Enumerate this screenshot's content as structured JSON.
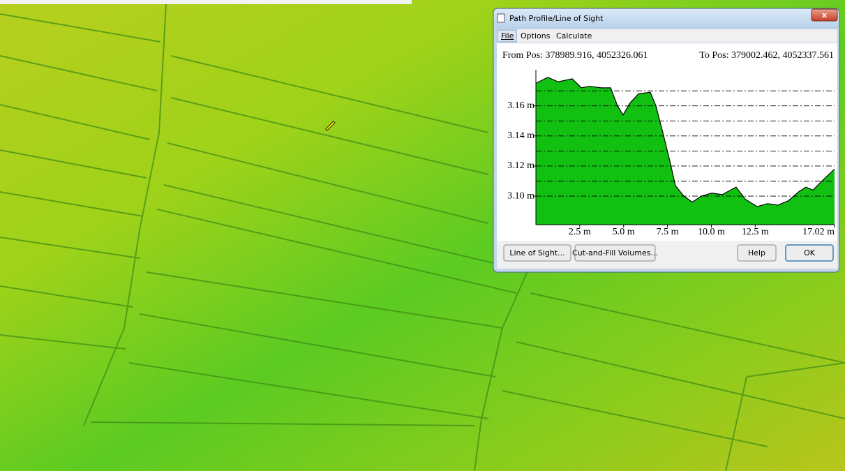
{
  "window": {
    "title": "Path Profile/Line of Sight",
    "menu": [
      "File",
      "Options",
      "Calculate"
    ],
    "from_pos": "From Pos: 378989.916, 4052326.061",
    "to_pos": "To Pos: 379002.462, 4052337.561",
    "buttons": [
      "Line of Sight...",
      "Cut-and-Fill Volumes...",
      "Help",
      "OK"
    ]
  },
  "chart_data": {
    "type": "area",
    "color": "#12c012",
    "grid": true,
    "x": [
      0,
      0.68,
      1.27,
      2.07,
      2.59,
      3.06,
      3.74,
      4.26,
      4.65,
      4.97,
      5.37,
      5.85,
      6.52,
      6.84,
      7.24,
      7.64,
      7.95,
      8.43,
      8.91,
      9.43,
      10.02,
      10.62,
      11.41,
      11.93,
      12.61,
      13.2,
      13.8,
      14.4,
      14.99,
      15.39,
      15.79,
      16.39,
      17.02
    ],
    "values": [
      3.175,
      3.179,
      3.176,
      3.178,
      3.172,
      3.173,
      3.172,
      3.172,
      3.16,
      3.154,
      3.162,
      3.168,
      3.169,
      3.16,
      3.142,
      3.123,
      3.107,
      3.1,
      3.096,
      3.1,
      3.102,
      3.101,
      3.106,
      3.098,
      3.093,
      3.095,
      3.094,
      3.097,
      3.103,
      3.106,
      3.104,
      3.111,
      3.118
    ],
    "xlim": [
      0,
      17.02
    ],
    "ylim": [
      3.081,
      3.184
    ],
    "xticks": [
      {
        "value": 2.5,
        "label": "2.5 m"
      },
      {
        "value": 5.0,
        "label": "5.0 m"
      },
      {
        "value": 7.5,
        "label": "7.5 m"
      },
      {
        "value": 10.0,
        "label": "10.0 m"
      },
      {
        "value": 12.5,
        "label": "12.5 m"
      },
      {
        "value": 17.02,
        "label": "17.02 m"
      }
    ],
    "yticks": [
      {
        "value": 3.1,
        "label": "3.10 m"
      },
      {
        "value": 3.12,
        "label": "3.12 m"
      },
      {
        "value": 3.14,
        "label": "3.14 m"
      },
      {
        "value": 3.16,
        "label": "3.16 m"
      }
    ],
    "minor_yticks": [
      3.11,
      3.13,
      3.15,
      3.17
    ]
  }
}
